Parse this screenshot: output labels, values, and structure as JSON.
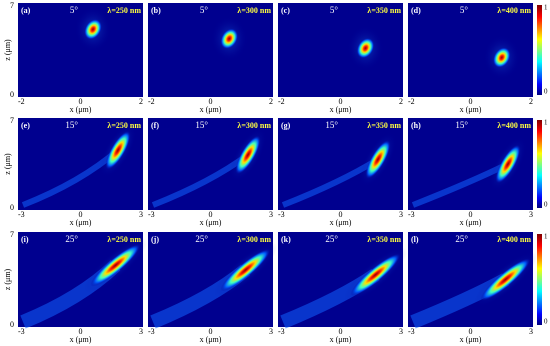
{
  "y_axis_label": "z (μm)",
  "x_axis_label": "x (μm)",
  "rows": [
    {
      "z_ticks": [
        "7",
        "0"
      ],
      "x_ticks": [
        "-2",
        "0",
        "2"
      ],
      "colorbar_ticks": [
        "1",
        "0"
      ],
      "panels": [
        {
          "label": "(a)",
          "angle": "5°",
          "wavelength": "λ=250 nm"
        },
        {
          "label": "(b)",
          "angle": "5°",
          "wavelength": "λ=300 nm"
        },
        {
          "label": "(c)",
          "angle": "5°",
          "wavelength": "λ=350 nm"
        },
        {
          "label": "(d)",
          "angle": "5°",
          "wavelength": "λ=400 nm"
        }
      ]
    },
    {
      "z_ticks": [
        "7",
        "0"
      ],
      "x_ticks": [
        "-3",
        "0",
        "3"
      ],
      "colorbar_ticks": [
        "1",
        "0"
      ],
      "panels": [
        {
          "label": "(e)",
          "angle": "15°",
          "wavelength": "λ=250 nm"
        },
        {
          "label": "(f)",
          "angle": "15°",
          "wavelength": "λ=300 nm"
        },
        {
          "label": "(g)",
          "angle": "15°",
          "wavelength": "λ=350 nm"
        },
        {
          "label": "(h)",
          "angle": "15°",
          "wavelength": "λ=400 nm"
        }
      ]
    },
    {
      "z_ticks": [
        "7",
        "0"
      ],
      "x_ticks": [
        "-3",
        "0",
        "3"
      ],
      "colorbar_ticks": [
        "1",
        "0"
      ],
      "panels": [
        {
          "label": "(i)",
          "angle": "25°",
          "wavelength": "λ=250 nm"
        },
        {
          "label": "(j)",
          "angle": "25°",
          "wavelength": "λ=300 nm"
        },
        {
          "label": "(k)",
          "angle": "25°",
          "wavelength": "λ=350 nm"
        },
        {
          "label": "(l)",
          "angle": "25°",
          "wavelength": "λ=400 nm"
        }
      ]
    }
  ]
}
